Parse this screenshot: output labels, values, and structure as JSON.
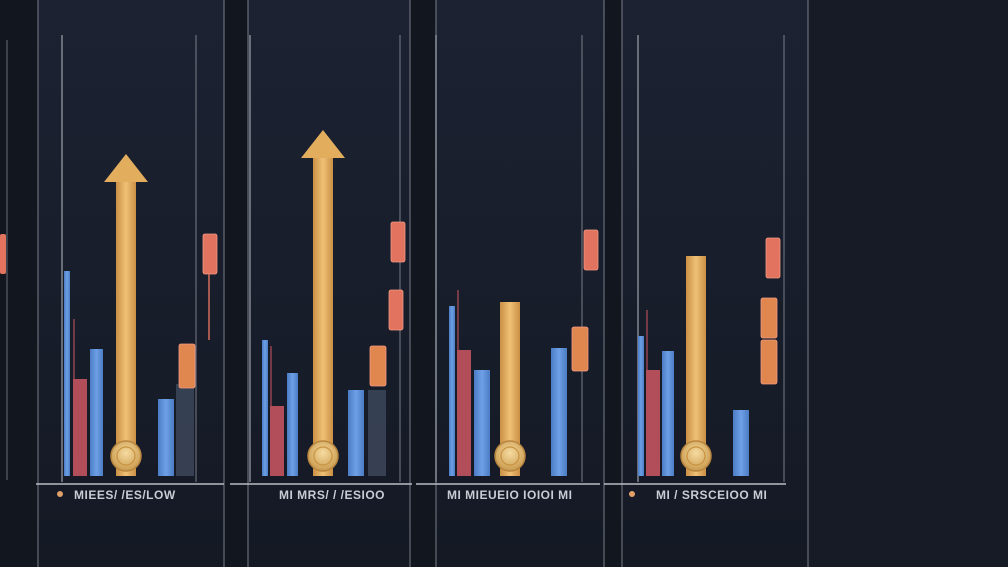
{
  "colors": {
    "background": "#12161f",
    "panel": "#1a2030",
    "panel_edge": "#101520",
    "divider": "#8a8f9a",
    "baseline": "#b9bcc4",
    "blue": "#5b8fd6",
    "red": "#b24d5a",
    "gold": "#e3ad5e",
    "coral": "#e2735f",
    "orange": "#e0864f",
    "slate": "#3a4558",
    "coin": "#e8c27a",
    "label": "#c9ccd4"
  },
  "chart_data": [
    {
      "type": "bar",
      "caption": "MIEES/ /ES/LOW",
      "bars": [
        {
          "color": "blue",
          "value": 205
        },
        {
          "color": "red",
          "value": 97
        },
        {
          "color": "blue",
          "value": 127
        },
        {
          "color": "blue",
          "value": 77
        },
        {
          "color": "slate",
          "value": 92
        }
      ],
      "arrow_value": 322,
      "floating": [
        {
          "color": "coral",
          "value": 222
        },
        {
          "color": "orange",
          "value": 110
        }
      ]
    },
    {
      "type": "bar",
      "caption": "MI MRS/ / /ESIOO",
      "bars": [
        {
          "color": "blue",
          "value": 136
        },
        {
          "color": "red",
          "value": 70
        },
        {
          "color": "blue",
          "value": 103
        },
        {
          "color": "blue",
          "value": 86
        },
        {
          "color": "slate",
          "value": 86
        }
      ],
      "arrow_value": 346,
      "floating": [
        {
          "color": "coral",
          "value": 234
        },
        {
          "color": "coral",
          "value": 166
        },
        {
          "color": "orange",
          "value": 110
        }
      ]
    },
    {
      "type": "bar",
      "caption": "MI MIEUEIO IOIOI MI",
      "bars": [
        {
          "color": "blue",
          "value": 170
        },
        {
          "color": "red",
          "value": 126
        },
        {
          "color": "blue",
          "value": 106
        },
        {
          "color": "blue",
          "value": 128
        }
      ],
      "gold_bar_value": 174,
      "floating": [
        {
          "color": "coral",
          "value": 226
        },
        {
          "color": "orange",
          "value": 127
        }
      ]
    },
    {
      "type": "bar",
      "caption": "MI / SRSCEIOO MI",
      "bars": [
        {
          "color": "blue",
          "value": 140
        },
        {
          "color": "red",
          "value": 106
        },
        {
          "color": "blue",
          "value": 125
        },
        {
          "color": "blue",
          "value": 66
        }
      ],
      "gold_bar_value": 220,
      "floating": [
        {
          "color": "coral",
          "value": 218
        },
        {
          "color": "orange",
          "value": 158
        },
        {
          "color": "orange",
          "value": 114
        }
      ]
    }
  ]
}
